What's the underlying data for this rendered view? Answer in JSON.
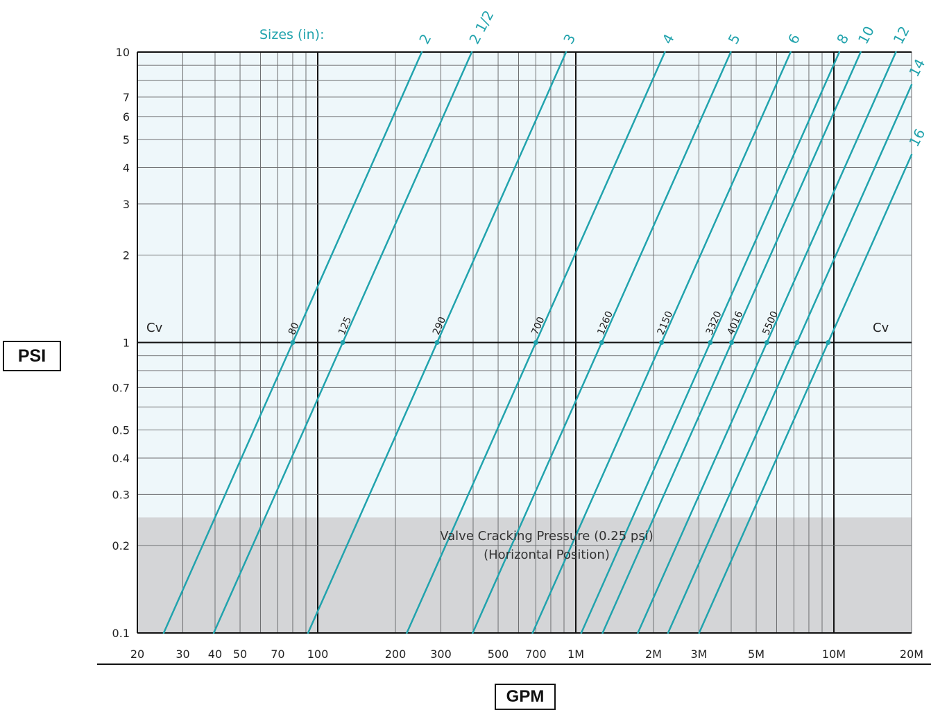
{
  "chart_data": {
    "type": "line",
    "xscale": "log",
    "yscale": "log",
    "xlim": [
      20,
      20000
    ],
    "ylim": [
      0.1,
      10
    ],
    "x_tick_labels": [
      {
        "v": 20,
        "label": "20"
      },
      {
        "v": 30,
        "label": "30"
      },
      {
        "v": 40,
        "label": "40"
      },
      {
        "v": 50,
        "label": "50"
      },
      {
        "v": 70,
        "label": "70"
      },
      {
        "v": 100,
        "label": "100"
      },
      {
        "v": 200,
        "label": "200"
      },
      {
        "v": 300,
        "label": "300"
      },
      {
        "v": 500,
        "label": "500"
      },
      {
        "v": 700,
        "label": "700"
      },
      {
        "v": 1000,
        "label": "1M"
      },
      {
        "v": 2000,
        "label": "2M"
      },
      {
        "v": 3000,
        "label": "3M"
      },
      {
        "v": 5000,
        "label": "5M"
      },
      {
        "v": 10000,
        "label": "10M"
      },
      {
        "v": 20000,
        "label": "20M"
      }
    ],
    "y_tick_labels": [
      {
        "v": 10,
        "label": "10"
      },
      {
        "v": 7,
        "label": "7"
      },
      {
        "v": 6,
        "label": "6"
      },
      {
        "v": 5,
        "label": "5"
      },
      {
        "v": 4,
        "label": "4"
      },
      {
        "v": 3,
        "label": "3"
      },
      {
        "v": 2,
        "label": "2"
      },
      {
        "v": 1,
        "label": "1"
      },
      {
        "v": 0.7,
        "label": "0.7"
      },
      {
        "v": 0.5,
        "label": "0.5"
      },
      {
        "v": 0.4,
        "label": "0.4"
      },
      {
        "v": 0.3,
        "label": "0.3"
      },
      {
        "v": 0.2,
        "label": "0.2"
      },
      {
        "v": 0.1,
        "label": "0.1"
      }
    ],
    "x_grid": [
      20,
      30,
      40,
      50,
      60,
      70,
      80,
      90,
      100,
      200,
      300,
      400,
      500,
      600,
      700,
      800,
      900,
      1000,
      2000,
      3000,
      4000,
      5000,
      6000,
      7000,
      8000,
      9000,
      10000,
      20000
    ],
    "x_major": [
      100,
      1000,
      10000
    ],
    "y_grid": [
      0.1,
      0.2,
      0.3,
      0.4,
      0.5,
      0.6,
      0.7,
      0.8,
      0.9,
      1,
      2,
      3,
      4,
      5,
      6,
      7,
      8,
      9,
      10
    ],
    "grid": true,
    "sizes_label": "Sizes (in):",
    "series": [
      {
        "name": "2",
        "cv": 80,
        "cv_label": "80"
      },
      {
        "name": "2 1/2",
        "cv": 125,
        "cv_label": "125"
      },
      {
        "name": "3",
        "cv": 290,
        "cv_label": "290"
      },
      {
        "name": "4",
        "cv": 700,
        "cv_label": "700"
      },
      {
        "name": "5",
        "cv": 1260,
        "cv_label": "1260"
      },
      {
        "name": "6",
        "cv": 2150,
        "cv_label": "2150"
      },
      {
        "name": "8",
        "cv": 3320,
        "cv_label": "3320"
      },
      {
        "name": "10",
        "cv": 4016,
        "cv_label": "4016"
      },
      {
        "name": "12",
        "cv": 5500,
        "cv_label": "5500"
      },
      {
        "name": "14",
        "cv": 7200,
        "cv_label": ""
      },
      {
        "name": "16",
        "cv": 9500,
        "cv_label": ""
      }
    ],
    "cv_reference_psi": 1,
    "cv_left_label": "Cv",
    "cv_right_label": "Cv",
    "cracking_band": {
      "from_psi": 0.1,
      "to_psi": 0.25,
      "line1": "Valve Cracking Pressure (0.25 psi)",
      "line2": "(Horizontal Position)"
    },
    "ylabel": "PSI",
    "xlabel": "GPM"
  },
  "colors": {
    "curve": "#21a3ad",
    "plot_bg": "#eef7fa",
    "band_bg": "#d4d5d7",
    "grid": "#6d6e70",
    "major_grid": "#111111"
  }
}
